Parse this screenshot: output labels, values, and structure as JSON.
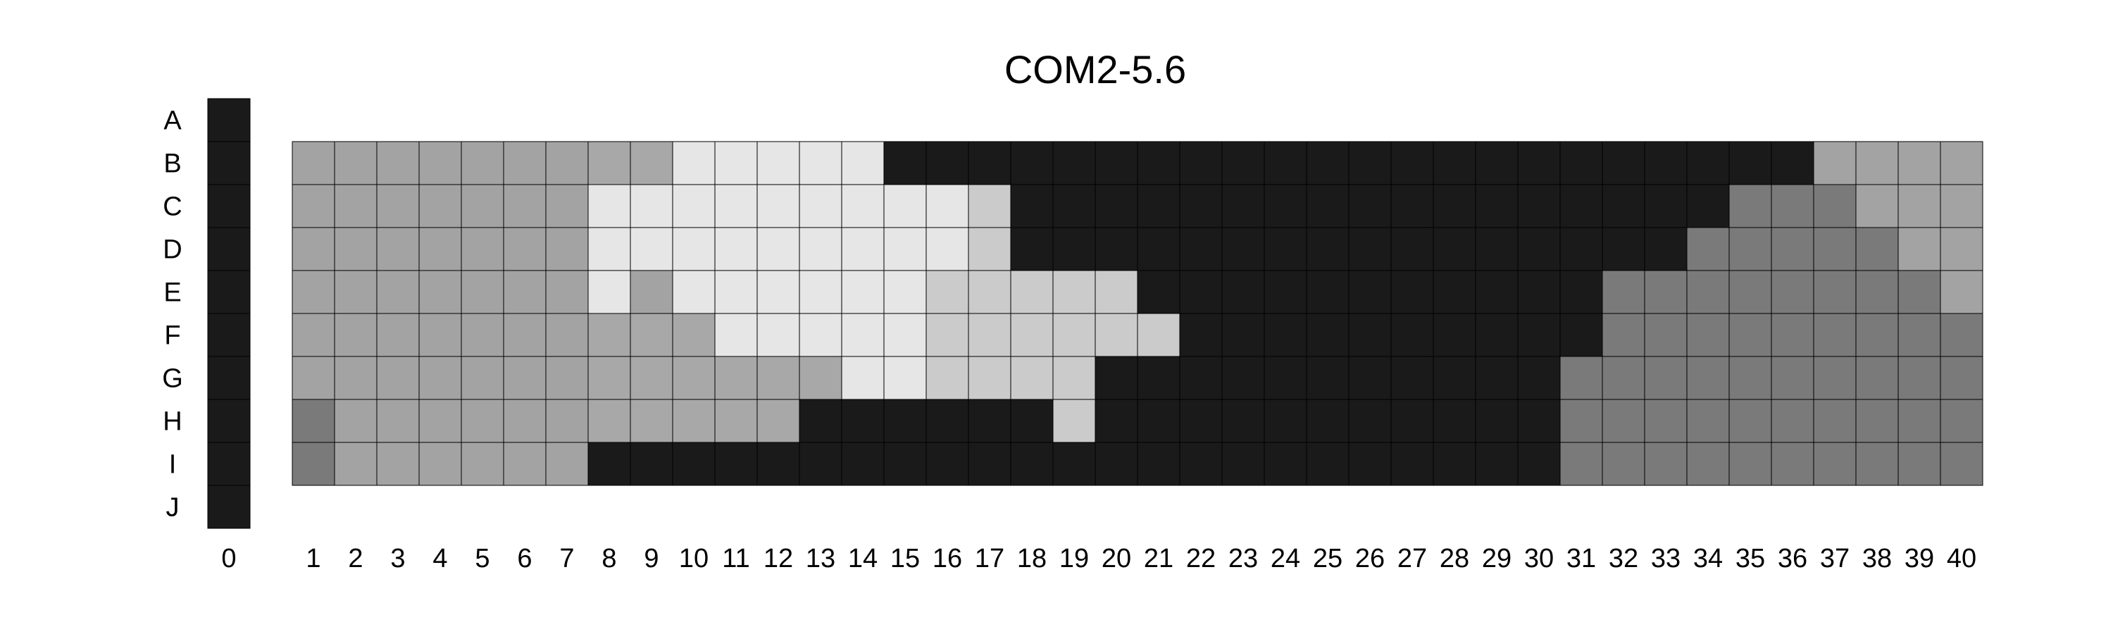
{
  "chart_data": {
    "type": "heatmap",
    "title": "COM2-5.6",
    "xlabel": "",
    "ylabel": "",
    "rows": [
      "A",
      "B",
      "C",
      "D",
      "E",
      "F",
      "G",
      "H",
      "I",
      "J"
    ],
    "columns": [
      "0",
      "1",
      "2",
      "3",
      "4",
      "5",
      "6",
      "7",
      "8",
      "9",
      "10",
      "11",
      "12",
      "13",
      "14",
      "15",
      "16",
      "17",
      "18",
      "19",
      "20",
      "21",
      "22",
      "23",
      "24",
      "25",
      "26",
      "27",
      "28",
      "29",
      "30",
      "31",
      "32",
      "33",
      "34",
      "35",
      "36",
      "37",
      "38",
      "39",
      "40"
    ],
    "color_scale": {
      "0": "#ffffff",
      "1": "#e6e6e6",
      "2": "#cbcbcb",
      "3": "#a8a8a8",
      "4": "#a3a3a3",
      "5": "#7a7a7a",
      "6": "#1a1a1a"
    },
    "grid": true,
    "values": [
      [
        6,
        0,
        0,
        0,
        0,
        0,
        0,
        0,
        0,
        0,
        0,
        0,
        0,
        0,
        0,
        0,
        0,
        0,
        0,
        0,
        0,
        0,
        0,
        0,
        0,
        0,
        0,
        0,
        0,
        0,
        0,
        0,
        0,
        0,
        0,
        0,
        0,
        0,
        0,
        0,
        0
      ],
      [
        6,
        4,
        4,
        4,
        4,
        4,
        4,
        4,
        3,
        3,
        1,
        1,
        1,
        1,
        1,
        6,
        6,
        6,
        6,
        6,
        6,
        6,
        6,
        6,
        6,
        6,
        6,
        6,
        6,
        6,
        6,
        6,
        6,
        6,
        6,
        6,
        6,
        4,
        4,
        4,
        4
      ],
      [
        6,
        4,
        4,
        4,
        4,
        4,
        4,
        4,
        1,
        1,
        1,
        1,
        1,
        1,
        1,
        1,
        1,
        2,
        6,
        6,
        6,
        6,
        6,
        6,
        6,
        6,
        6,
        6,
        6,
        6,
        6,
        6,
        6,
        6,
        6,
        5,
        5,
        5,
        4,
        4,
        4
      ],
      [
        6,
        4,
        4,
        4,
        4,
        4,
        4,
        4,
        1,
        1,
        1,
        1,
        1,
        1,
        1,
        1,
        1,
        2,
        6,
        6,
        6,
        6,
        6,
        6,
        6,
        6,
        6,
        6,
        6,
        6,
        6,
        6,
        6,
        6,
        5,
        5,
        5,
        5,
        5,
        4,
        4
      ],
      [
        6,
        4,
        4,
        4,
        4,
        4,
        4,
        4,
        1,
        4,
        1,
        1,
        1,
        1,
        1,
        1,
        2,
        2,
        2,
        2,
        2,
        6,
        6,
        6,
        6,
        6,
        6,
        6,
        6,
        6,
        6,
        6,
        5,
        5,
        5,
        5,
        5,
        5,
        5,
        5,
        4
      ],
      [
        6,
        4,
        4,
        4,
        4,
        4,
        4,
        4,
        3,
        3,
        3,
        1,
        1,
        1,
        1,
        1,
        2,
        2,
        2,
        2,
        2,
        2,
        6,
        6,
        6,
        6,
        6,
        6,
        6,
        6,
        6,
        6,
        5,
        5,
        5,
        5,
        5,
        5,
        5,
        5,
        5
      ],
      [
        6,
        4,
        4,
        4,
        4,
        4,
        4,
        4,
        3,
        3,
        3,
        3,
        3,
        3,
        1,
        1,
        2,
        2,
        2,
        2,
        6,
        6,
        6,
        6,
        6,
        6,
        6,
        6,
        6,
        6,
        6,
        5,
        5,
        5,
        5,
        5,
        5,
        5,
        5,
        5,
        5
      ],
      [
        6,
        5,
        4,
        4,
        4,
        4,
        4,
        4,
        3,
        3,
        3,
        3,
        3,
        6,
        6,
        6,
        6,
        6,
        6,
        2,
        6,
        6,
        6,
        6,
        6,
        6,
        6,
        6,
        6,
        6,
        6,
        5,
        5,
        5,
        5,
        5,
        5,
        5,
        5,
        5,
        5
      ],
      [
        6,
        5,
        4,
        4,
        4,
        4,
        4,
        4,
        6,
        6,
        6,
        6,
        6,
        6,
        6,
        6,
        6,
        6,
        6,
        6,
        6,
        6,
        6,
        6,
        6,
        6,
        6,
        6,
        6,
        6,
        6,
        5,
        5,
        5,
        5,
        5,
        5,
        5,
        5,
        5,
        5
      ],
      [
        6,
        0,
        0,
        0,
        0,
        0,
        0,
        0,
        0,
        0,
        0,
        0,
        0,
        0,
        0,
        0,
        0,
        0,
        0,
        0,
        0,
        0,
        0,
        0,
        0,
        0,
        0,
        0,
        0,
        0,
        0,
        0,
        0,
        0,
        0,
        0,
        0,
        0,
        0,
        0,
        0
      ]
    ]
  }
}
